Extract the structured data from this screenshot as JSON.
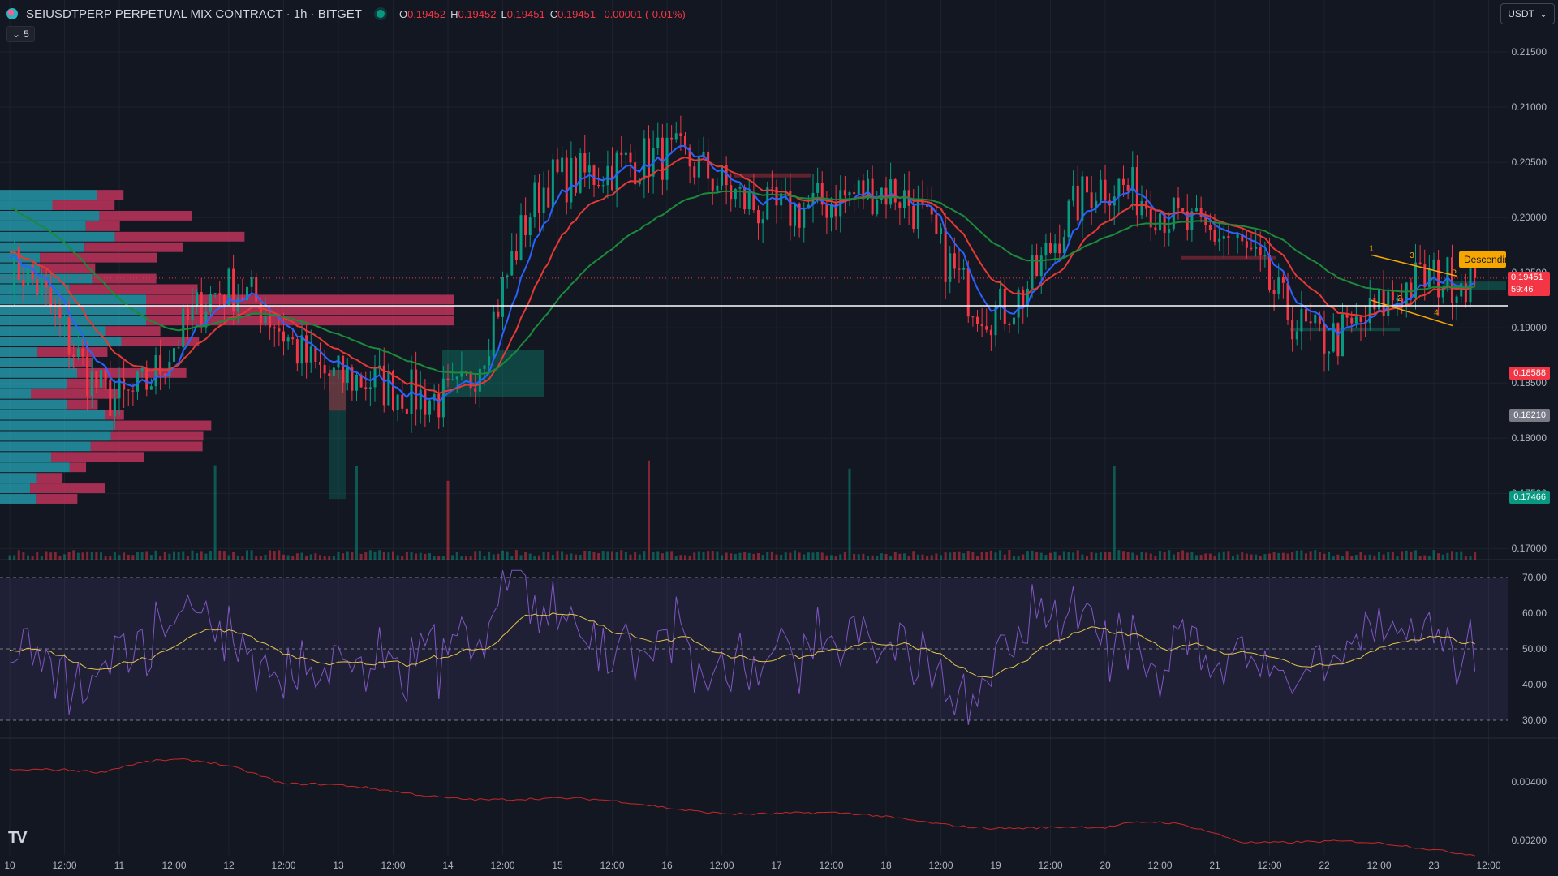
{
  "header": {
    "symbol": "SEIUSDTPERP PERPETUAL MIX CONTRACT · 1h · BITGET",
    "ohlc": [
      {
        "label": "O",
        "value": "0.19452"
      },
      {
        "label": "H",
        "value": "0.19452"
      },
      {
        "label": "L",
        "value": "0.19451"
      },
      {
        "label": "C",
        "value": "0.19451"
      },
      {
        "label": "",
        "value": "-0.00001 (-0.01%)"
      }
    ],
    "indicator_toggle_count": "5",
    "currency": "USDT"
  },
  "price_axis": {
    "ticks": [
      "0.21500",
      "0.21000",
      "0.20500",
      "0.20000",
      "0.19500",
      "0.19000",
      "0.18500",
      "0.18000",
      "0.17500",
      "0.17000"
    ],
    "tags": [
      {
        "value": "0.19451",
        "sub": "59:46",
        "color": "#f23645"
      },
      {
        "value": "0.18588",
        "color": "#f23645"
      },
      {
        "value": "0.18210",
        "color": "#787b86"
      },
      {
        "value": "0.17466",
        "color": "#089981"
      }
    ]
  },
  "rsi_axis": {
    "ticks": [
      "70.00",
      "60.00",
      "50.00",
      "40.00",
      "30.00"
    ]
  },
  "macd_axis": {
    "ticks": [
      "0.00400",
      "0.00200"
    ]
  },
  "time_axis": {
    "ticks": [
      "10",
      "12:00",
      "11",
      "12:00",
      "12",
      "12:00",
      "13",
      "12:00",
      "14",
      "12:00",
      "15",
      "12:00",
      "16",
      "12:00",
      "17",
      "12:00",
      "18",
      "12:00",
      "19",
      "12:00",
      "20",
      "12:00",
      "21",
      "12:00",
      "22",
      "12:00",
      "23",
      "12:00"
    ]
  },
  "pattern": {
    "label": "Descending",
    "points": [
      "1",
      "2",
      "3",
      "4",
      "5"
    ],
    "color": "#f7a600"
  },
  "branding": {
    "logo_text": "TV"
  },
  "colors": {
    "background": "#131722",
    "up": "#089981",
    "down": "#f23645",
    "ema_fast": "#2962ff",
    "ema_mid": "#e53935",
    "ema_slow": "#1b8a3a",
    "vp_up": "#26a7b8",
    "vp_down": "#d63864",
    "rsi": "#7e57c2",
    "rsi_ma": "#e3c44b"
  },
  "chart_data": {
    "type": "candlestick",
    "timeframe": "1h",
    "x_range_days": [
      "10",
      "23"
    ],
    "ylim": [
      0.169,
      0.2175
    ],
    "key_points": [
      {
        "t": "10",
        "price": 0.1955
      },
      {
        "t": "11",
        "price": 0.1835
      },
      {
        "t": "12",
        "price": 0.1935
      },
      {
        "t": "13",
        "price": 0.1855
      },
      {
        "t": "14",
        "price": 0.1835
      },
      {
        "t": "15",
        "price": 0.2035
      },
      {
        "t": "16",
        "price": 0.2055
      },
      {
        "t": "17",
        "price": 0.2005
      },
      {
        "t": "18",
        "price": 0.2025
      },
      {
        "t": "19",
        "price": 0.1915
      },
      {
        "t": "20",
        "price": 0.203
      },
      {
        "t": "21",
        "price": 0.1985
      },
      {
        "t": "22",
        "price": 0.189
      },
      {
        "t": "23",
        "price": 0.1945
      }
    ],
    "horizontal_line": 0.192,
    "last_price": 0.19451,
    "rsi": {
      "levels": [
        70,
        50,
        30
      ],
      "ylim": [
        25,
        75
      ]
    },
    "macd": {
      "ylim": [
        0.0015,
        0.0055
      ]
    }
  }
}
